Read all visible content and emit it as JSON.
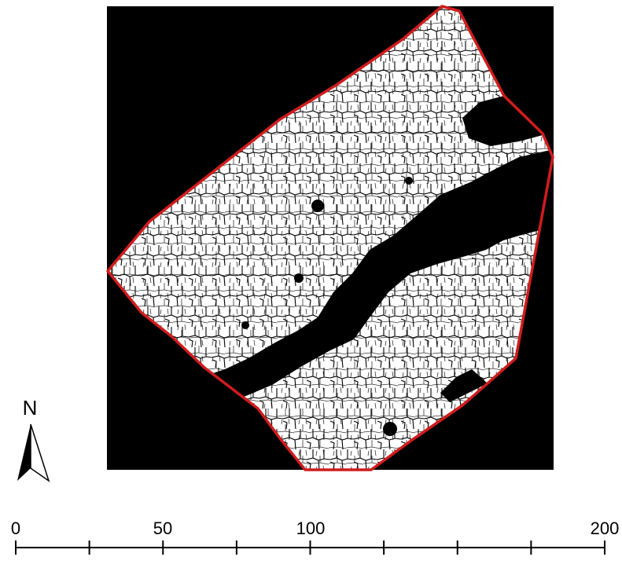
{
  "north_arrow": {
    "label": "N",
    "icon": "north-arrow-icon"
  },
  "scale_bar": {
    "labels": [
      "0",
      "50",
      "100",
      "200"
    ],
    "label_values": [
      0,
      50,
      100,
      200
    ],
    "tick_values": [
      0,
      25,
      50,
      75,
      100,
      125,
      150,
      175,
      200
    ]
  },
  "colors": {
    "background": "#000000",
    "polygons": "#ffffff",
    "polygon_outline": "#000000",
    "boundary": "#d01c1c"
  }
}
